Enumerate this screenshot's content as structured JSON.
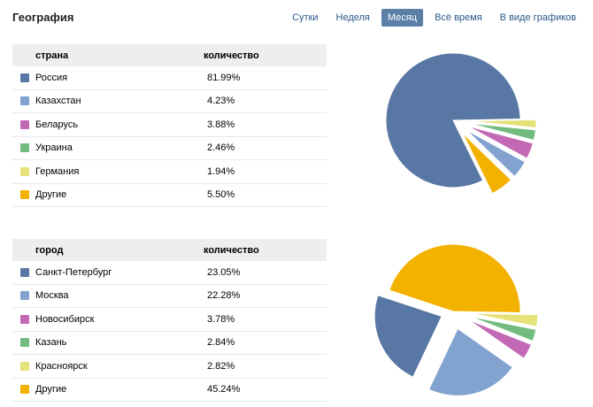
{
  "header": {
    "title": "География",
    "tabs": [
      {
        "label": "Сутки",
        "active": false
      },
      {
        "label": "Неделя",
        "active": false
      },
      {
        "label": "Месяц",
        "active": true
      },
      {
        "label": "Всё время",
        "active": false
      },
      {
        "label": "В виде графиков",
        "active": false
      }
    ]
  },
  "colors": {
    "c1": "#5877a4",
    "c2": "#82a3d0",
    "c3": "#c368b4",
    "c4": "#72bb7f",
    "c5": "#e6e27a",
    "c6": "#f3b200"
  },
  "countries": {
    "col1": "страна",
    "col2": "количество",
    "rows": [
      {
        "name": "Россия",
        "value": "81.99%",
        "color": "#5877a4"
      },
      {
        "name": "Казахстан",
        "value": "4.23%",
        "color": "#82a3d0"
      },
      {
        "name": "Беларусь",
        "value": "3.88%",
        "color": "#c368b4"
      },
      {
        "name": "Украина",
        "value": "2.46%",
        "color": "#72bb7f"
      },
      {
        "name": "Германия",
        "value": "1.94%",
        "color": "#e6e27a"
      },
      {
        "name": "Другие",
        "value": "5.50%",
        "color": "#f3b200"
      }
    ]
  },
  "cities": {
    "col1": "город",
    "col2": "количество",
    "rows": [
      {
        "name": "Санкт-Петербург",
        "value": "23.05%",
        "color": "#5877a4"
      },
      {
        "name": "Москва",
        "value": "22.28%",
        "color": "#82a3d0"
      },
      {
        "name": "Новосибирск",
        "value": "3.78%",
        "color": "#c368b4"
      },
      {
        "name": "Казань",
        "value": "2.84%",
        "color": "#72bb7f"
      },
      {
        "name": "Красноярск",
        "value": "2.82%",
        "color": "#e6e27a"
      },
      {
        "name": "Другие",
        "value": "45.24%",
        "color": "#f3b200"
      }
    ]
  },
  "chart_data": [
    {
      "type": "pie",
      "categories": [
        "Россия",
        "Казахстан",
        "Беларусь",
        "Украина",
        "Германия",
        "Другие"
      ],
      "values": [
        81.99,
        4.23,
        3.88,
        2.46,
        1.94,
        5.5
      ]
    },
    {
      "type": "pie",
      "categories": [
        "Санкт-Петербург",
        "Москва",
        "Новосибирск",
        "Казань",
        "Красноярск",
        "Другие"
      ],
      "values": [
        23.05,
        22.28,
        3.78,
        2.84,
        2.82,
        45.24
      ]
    }
  ]
}
